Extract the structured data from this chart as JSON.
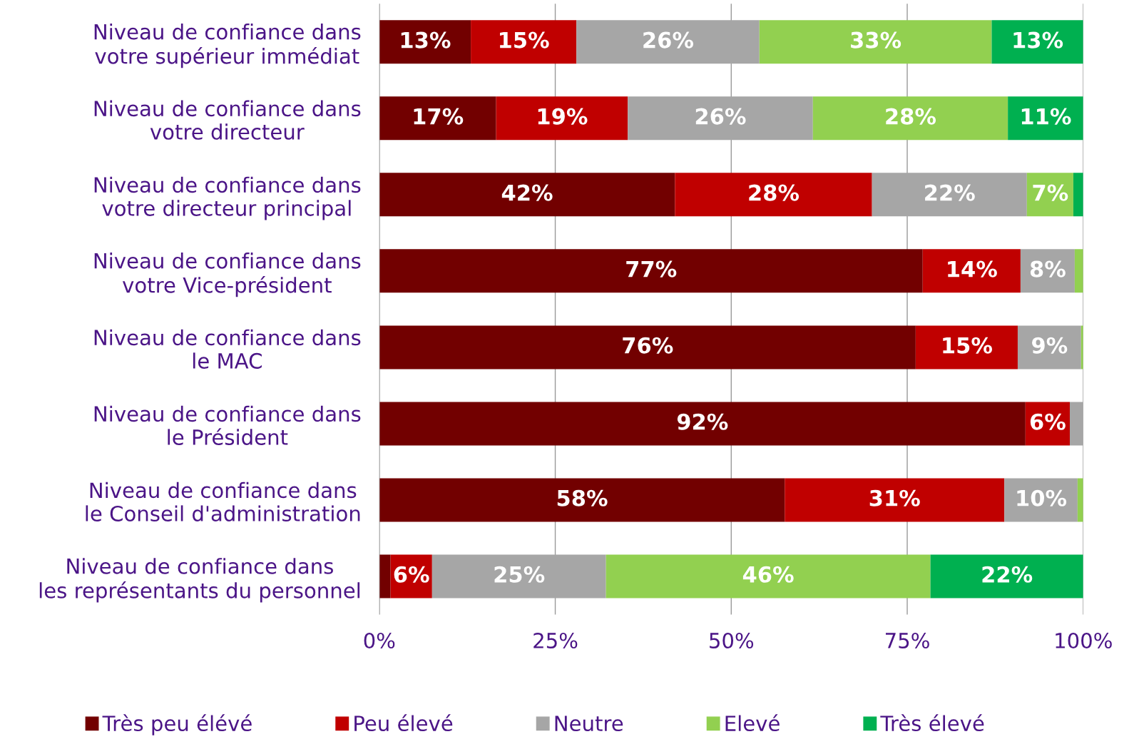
{
  "chart_data": {
    "type": "bar",
    "orientation": "horizontal",
    "stacked": true,
    "categories": [
      "Niveau de confiance dans\nvotre supérieur immédiat",
      "Niveau de confiance dans\nvotre directeur",
      "Niveau de confiance dans\nvotre directeur principal",
      "Niveau de confiance dans\nvotre Vice-président",
      "Niveau de confiance dans\nle MAC",
      "Niveau de confiance dans\nle Président",
      "Niveau de confiance dans\nle Conseil d'administration",
      "Niveau de confiance dans\nles représentants du personnel"
    ],
    "series": [
      {
        "name": "Très peu élévé",
        "color": "#720000",
        "values": [
          13,
          16.6,
          42,
          77.2,
          76.2,
          91.8,
          57.6,
          1.6
        ],
        "value_labels": [
          "13%",
          "17%",
          "42%",
          "77%",
          "76%",
          "92%",
          "58%",
          null
        ]
      },
      {
        "name": "Peu élevé",
        "color": "#c00000",
        "values": [
          15,
          18.7,
          28,
          13.9,
          14.5,
          6.3,
          31.2,
          5.9
        ],
        "value_labels": [
          "15%",
          "19%",
          "28%",
          "14%",
          "15%",
          "6%",
          "31%",
          "6%"
        ]
      },
      {
        "name": "Neutre",
        "color": "#a6a6a6",
        "values": [
          26,
          26.3,
          22,
          7.7,
          9.0,
          1.9,
          10.4,
          24.7
        ],
        "value_labels": [
          "26%",
          "26%",
          "22%",
          "8%",
          "9%",
          null,
          "10%",
          "25%"
        ]
      },
      {
        "name": "Elevé",
        "color": "#92d050",
        "values": [
          33,
          27.7,
          6.6,
          1.2,
          0.3,
          0,
          0.8,
          46.1
        ],
        "value_labels": [
          "33%",
          "28%",
          "7%",
          null,
          null,
          null,
          null,
          "46%"
        ]
      },
      {
        "name": "Très élevé",
        "color": "#00b050",
        "values": [
          13,
          10.7,
          1.4,
          0,
          0,
          0,
          0,
          21.7
        ],
        "value_labels": [
          "13%",
          "11%",
          null,
          null,
          null,
          null,
          null,
          "22%"
        ]
      }
    ],
    "xlim": [
      0,
      100
    ],
    "xticks": [
      {
        "value": 0,
        "label": "0%"
      },
      {
        "value": 25,
        "label": "25%"
      },
      {
        "value": 50,
        "label": "50%"
      },
      {
        "value": 75,
        "label": "75%"
      },
      {
        "value": 100,
        "label": "100%"
      }
    ],
    "grid": "x",
    "legend": "bottom"
  }
}
